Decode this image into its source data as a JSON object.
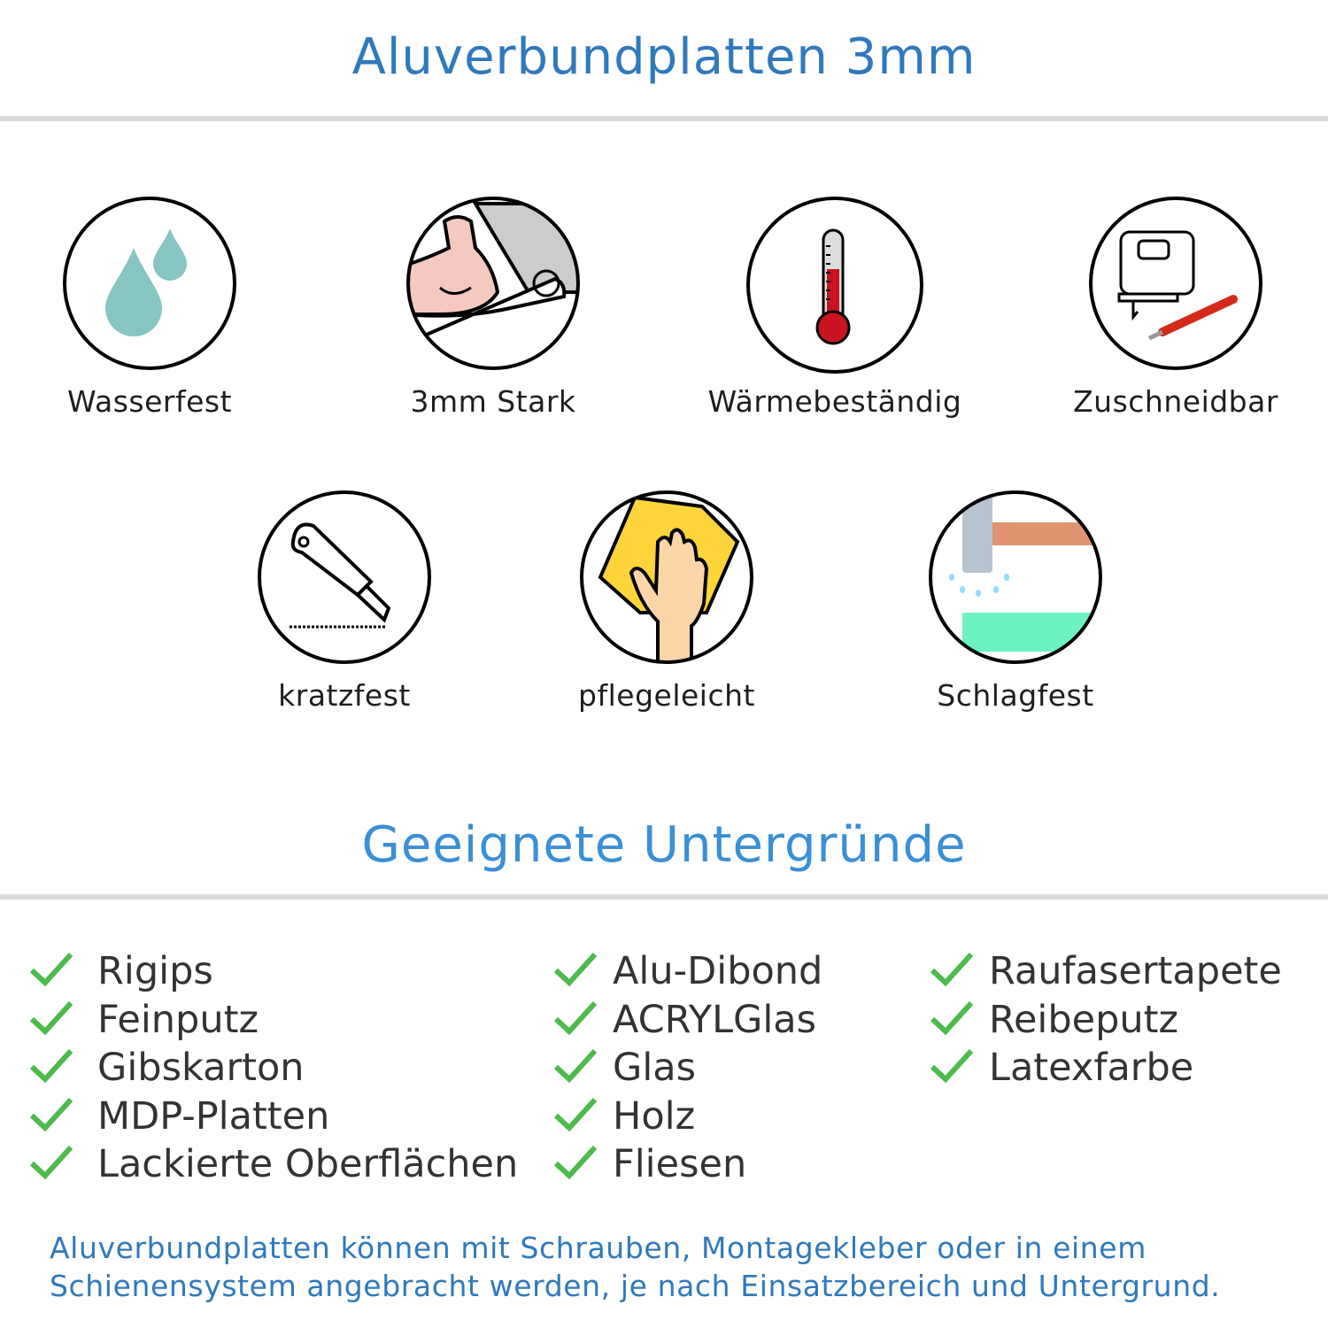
{
  "header": {
    "title": "Aluverbundplatten 3mm"
  },
  "features": [
    {
      "label": "Wasserfest",
      "icon": "water-drops-icon"
    },
    {
      "label": "3mm Stark",
      "icon": "strong-arm-icon"
    },
    {
      "label": "Wärmebeständig",
      "icon": "thermometer-icon"
    },
    {
      "label": "Zuschneidbar",
      "icon": "jigsaw-knife-icon"
    },
    {
      "label": "kratzfest",
      "icon": "cutter-knife-icon"
    },
    {
      "label": "pflegeleicht",
      "icon": "hand-cloth-icon"
    },
    {
      "label": "Schlagfest",
      "icon": "hammer-icon"
    }
  ],
  "surfaces": {
    "title": "Geeignete Untergründe",
    "columns": [
      [
        "Rigips",
        "Feinputz",
        "Gibskarton",
        "MDP-Platten",
        "Lackierte Oberflächen"
      ],
      [
        "Alu-Dibond",
        "ACRYLGlas",
        "Glas",
        "Holz",
        "Fliesen"
      ],
      [
        "Raufasertapete",
        "Reibeputz",
        "Latexfarbe"
      ]
    ]
  },
  "footer": {
    "lines": [
      "Aluverbundplatten können mit Schrauben, Montagekleber oder in einem",
      "Schienensystem angebracht werden, je nach Einsatzbereich und Untergrund."
    ]
  },
  "colors": {
    "title": "#2f79bd",
    "heading": "#3a8fd6",
    "check": "#4cbb4c"
  }
}
